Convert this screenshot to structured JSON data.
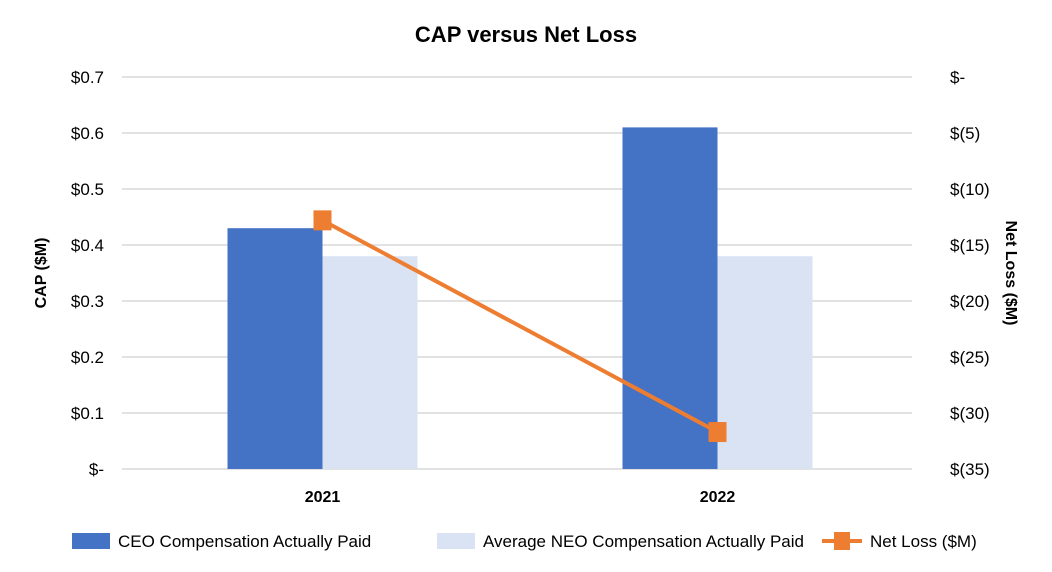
{
  "chart_data": {
    "type": "bar",
    "title": "CAP versus Net Loss",
    "categories": [
      "2021",
      "2022"
    ],
    "ylabel": "CAP ($M)",
    "y2label": "Net Loss ($M)",
    "ylim": [
      0,
      0.7
    ],
    "y2lim": [
      -35,
      0
    ],
    "yticks": [
      "$-",
      "$0.1",
      "$0.2",
      "$0.3",
      "$0.4",
      "$0.5",
      "$0.6",
      "$0.7"
    ],
    "y2ticks": [
      "$-",
      "$(5)",
      "$(10)",
      "$(15)",
      "$(20)",
      "$(25)",
      "$(30)",
      "$(35)"
    ],
    "grid": true,
    "legend_placement": "bottom",
    "series": [
      {
        "name": "CEO Compensation Actually Paid",
        "type": "bar",
        "axis": "left",
        "color": "#4472C4",
        "values": [
          0.43,
          0.61
        ]
      },
      {
        "name": "Average NEO Compensation Actually Paid",
        "type": "bar",
        "axis": "left",
        "color": "#DAE3F3",
        "values": [
          0.38,
          0.38
        ]
      },
      {
        "name": "Net Loss ($M)",
        "type": "line",
        "axis": "right",
        "marker": "square",
        "color": "#ED7D31",
        "values": [
          -12.8,
          -31.7
        ]
      }
    ]
  }
}
